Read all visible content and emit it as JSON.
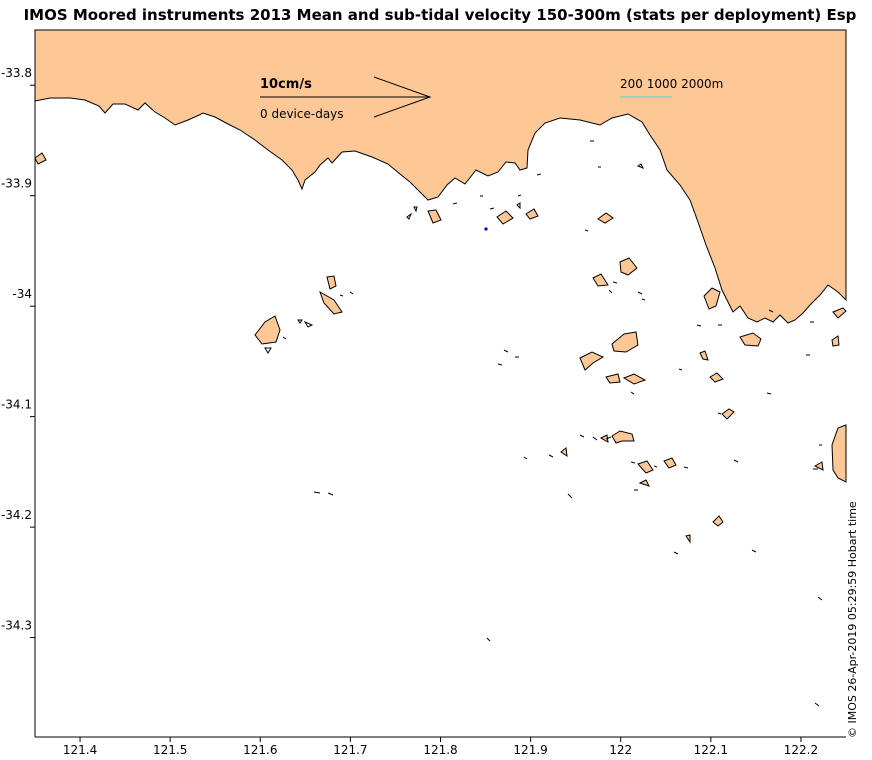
{
  "title": "IMOS Moored instruments 2013 Mean and sub-tidal velocity 150-300m (stats per deployment) Esp",
  "colors": {
    "land": "#fdc895",
    "water": "#ffffff",
    "scale_bar": "#99d9b0",
    "station_marker": "#0000cc"
  },
  "legend": {
    "speed_label": "10cm/s",
    "count_label": "0 device-days",
    "depth_label": "200 1000 2000m"
  },
  "credit": "© IMOS 26-Apr-2019 05:29:59 Hobart time",
  "axes": {
    "x_ticks": [
      {
        "value": 121.4,
        "label": "121.4"
      },
      {
        "value": 121.5,
        "label": "121.5"
      },
      {
        "value": 121.6,
        "label": "121.6"
      },
      {
        "value": 121.7,
        "label": "121.7"
      },
      {
        "value": 121.8,
        "label": "121.8"
      },
      {
        "value": 121.9,
        "label": "121.9"
      },
      {
        "value": 122.0,
        "label": "122"
      },
      {
        "value": 122.1,
        "label": "122.1"
      },
      {
        "value": 122.2,
        "label": "122.2"
      }
    ],
    "y_ticks": [
      {
        "value": -33.8,
        "label": "-33.8"
      },
      {
        "value": -33.9,
        "label": "-33.9"
      },
      {
        "value": -34.0,
        "label": "-34"
      },
      {
        "value": -34.1,
        "label": "-34.1"
      },
      {
        "value": -34.2,
        "label": "-34.2"
      },
      {
        "value": -34.3,
        "label": "-34.3"
      }
    ],
    "lon_range": [
      121.35,
      122.25
    ],
    "lat_range": [
      -34.39,
      -33.75
    ]
  },
  "station": {
    "lon": 121.853,
    "lat": -33.926
  }
}
